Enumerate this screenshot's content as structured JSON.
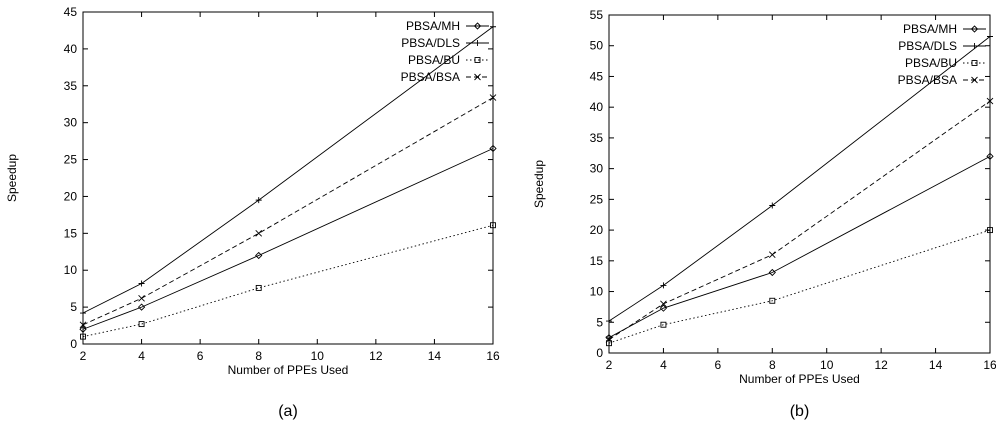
{
  "chart_data": [
    {
      "type": "line",
      "panel_label": "(a)",
      "xlabel": "Number of PPEs Used",
      "ylabel": "Speedup",
      "xlim": [
        2,
        16
      ],
      "ylim": [
        0,
        45
      ],
      "xticks": [
        2,
        4,
        6,
        8,
        10,
        12,
        14,
        16
      ],
      "yticks": [
        0,
        5,
        10,
        15,
        20,
        25,
        30,
        35,
        40,
        45
      ],
      "legend_position": "top-right",
      "grid": false,
      "series": [
        {
          "name": "PBSA/MH",
          "marker": "diamond",
          "dash": "solid",
          "x": [
            2,
            4,
            8,
            16
          ],
          "y": [
            2,
            5,
            12,
            26.5
          ]
        },
        {
          "name": "PBSA/DLS",
          "marker": "plus",
          "dash": "solid",
          "x": [
            2,
            4,
            8,
            16
          ],
          "y": [
            4.2,
            8.2,
            19.5,
            43
          ]
        },
        {
          "name": "PBSA/BU",
          "marker": "square",
          "dash": "dotted",
          "x": [
            2,
            4,
            8,
            16
          ],
          "y": [
            1,
            2.7,
            7.6,
            16.1
          ]
        },
        {
          "name": "PBSA/BSA",
          "marker": "cross",
          "dash": "dashed",
          "x": [
            2,
            4,
            8,
            16
          ],
          "y": [
            2.6,
            6.2,
            15,
            33.4
          ]
        }
      ]
    },
    {
      "type": "line",
      "panel_label": "(b)",
      "xlabel": "Number of PPEs Used",
      "ylabel": "Speedup",
      "xlim": [
        2,
        16
      ],
      "ylim": [
        0,
        55
      ],
      "xticks": [
        2,
        4,
        6,
        8,
        10,
        12,
        14,
        16
      ],
      "yticks": [
        0,
        5,
        10,
        15,
        20,
        25,
        30,
        35,
        40,
        45,
        50,
        55
      ],
      "legend_position": "top-right",
      "grid": false,
      "series": [
        {
          "name": "PBSA/MH",
          "marker": "diamond",
          "dash": "solid",
          "x": [
            2,
            4,
            8,
            16
          ],
          "y": [
            2.5,
            7.3,
            13.1,
            32
          ]
        },
        {
          "name": "PBSA/DLS",
          "marker": "plus",
          "dash": "solid",
          "x": [
            2,
            4,
            8,
            16
          ],
          "y": [
            5.2,
            11,
            24,
            51.5
          ]
        },
        {
          "name": "PBSA/BU",
          "marker": "square",
          "dash": "dotted",
          "x": [
            2,
            4,
            8,
            16
          ],
          "y": [
            1.6,
            4.6,
            8.5,
            20
          ]
        },
        {
          "name": "PBSA/BSA",
          "marker": "cross",
          "dash": "dashed",
          "x": [
            2,
            4,
            8,
            16
          ],
          "y": [
            2.2,
            8,
            16,
            41
          ]
        }
      ]
    }
  ]
}
